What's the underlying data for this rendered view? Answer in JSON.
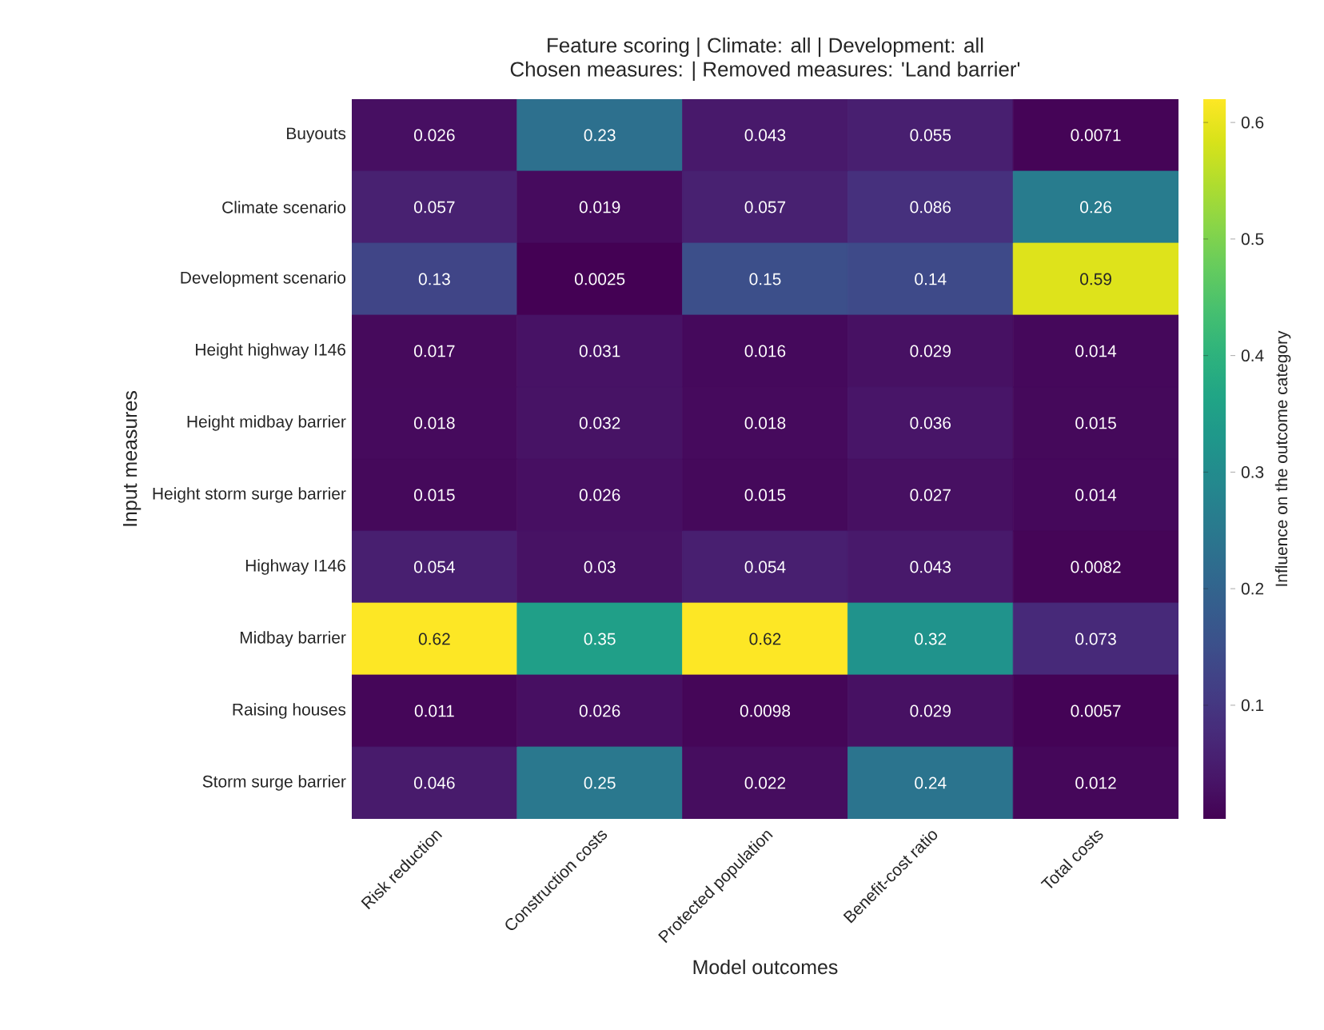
{
  "chart_data": {
    "type": "heatmap",
    "title": "Feature scoring | Climate: all | Development: all",
    "subtitle": "Chosen measures:  | Removed measures: 'Land barrier'",
    "xlabel": "Model outcomes",
    "ylabel": "Input measures",
    "clabel": "Influence on the outcome category",
    "categories": [
      "Risk reduction",
      "Construction costs",
      "Protected population",
      "Benefit-cost ratio",
      "Total costs"
    ],
    "y_categories": [
      "Buyouts",
      "Climate scenario",
      "Development scenario",
      "Height highway I146",
      "Height midbay barrier",
      "Height storm surge barrier",
      "Highway I146",
      "Midbay barrier",
      "Raising houses",
      "Storm surge barrier"
    ],
    "cells": [
      [
        0.026,
        0.23,
        0.043,
        0.055,
        0.0071
      ],
      [
        0.057,
        0.019,
        0.057,
        0.086,
        0.26
      ],
      [
        0.13,
        0.0025,
        0.15,
        0.14,
        0.59
      ],
      [
        0.017,
        0.031,
        0.016,
        0.029,
        0.014
      ],
      [
        0.018,
        0.032,
        0.018,
        0.036,
        0.015
      ],
      [
        0.015,
        0.026,
        0.015,
        0.027,
        0.014
      ],
      [
        0.054,
        0.03,
        0.054,
        0.043,
        0.0082
      ],
      [
        0.62,
        0.35,
        0.62,
        0.32,
        0.073
      ],
      [
        0.011,
        0.026,
        0.0098,
        0.029,
        0.0057
      ],
      [
        0.046,
        0.25,
        0.022,
        0.24,
        0.012
      ]
    ],
    "clim": [
      0.0025,
      0.62
    ],
    "cticks": [
      0.1,
      0.2,
      0.3,
      0.4,
      0.5,
      0.6
    ],
    "data_labels": true
  }
}
